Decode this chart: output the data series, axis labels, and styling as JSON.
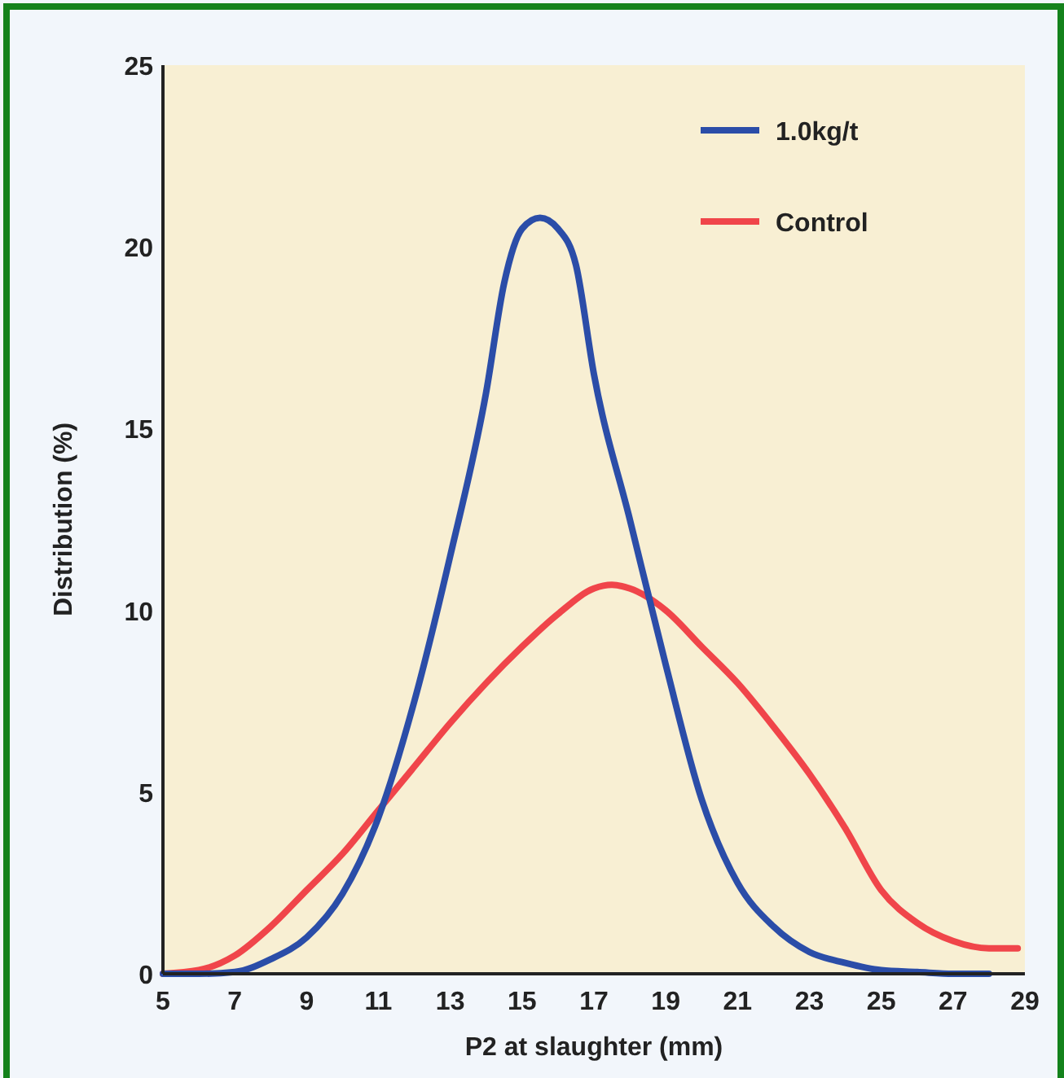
{
  "chart_data": {
    "type": "line",
    "xlabel": "P2 at slaughter (mm)",
    "ylabel": "Distribution (%)",
    "xlim": [
      5,
      29
    ],
    "xticks": [
      5,
      7,
      9,
      11,
      13,
      15,
      17,
      19,
      21,
      23,
      25,
      27,
      29
    ],
    "ylim": [
      0,
      25
    ],
    "yticks": [
      0,
      5,
      10,
      15,
      20,
      25
    ],
    "grid": false,
    "legend": "top right",
    "marker": "none",
    "line_style": "solid",
    "series": [
      {
        "name": "Control",
        "color": "#f0454a",
        "x": [
          5,
          6,
          7,
          8,
          9,
          10,
          11,
          12,
          13,
          14,
          15,
          16,
          17,
          17.5,
          18,
          19,
          20,
          21,
          22,
          23,
          24,
          25,
          26,
          27,
          28,
          28.8
        ],
        "values": [
          0,
          0.1,
          0.5,
          1.3,
          2.3,
          3.3,
          4.5,
          5.7,
          6.9,
          8.0,
          9.0,
          9.9,
          10.6,
          10.7,
          10.6,
          10.0,
          9.0,
          8.0,
          6.8,
          5.5,
          4.0,
          2.3,
          1.4,
          0.9,
          0.7,
          0.7
        ]
      },
      {
        "name": "1.0kg/t",
        "color": "#2b4da8",
        "x": [
          5,
          6,
          7,
          8,
          9,
          10,
          11,
          12,
          13,
          14,
          14.5,
          15,
          15.5,
          16,
          16.5,
          17,
          18,
          19,
          20,
          21,
          22,
          23,
          24,
          25,
          26,
          27,
          28
        ],
        "values": [
          0,
          0,
          0.05,
          0.4,
          1.0,
          2.2,
          4.3,
          7.5,
          11.5,
          16,
          19,
          20.5,
          20.8,
          20.5,
          19.5,
          16.5,
          12.5,
          8.5,
          4.8,
          2.5,
          1.3,
          0.6,
          0.3,
          0.1,
          0.05,
          0,
          0
        ]
      }
    ]
  }
}
